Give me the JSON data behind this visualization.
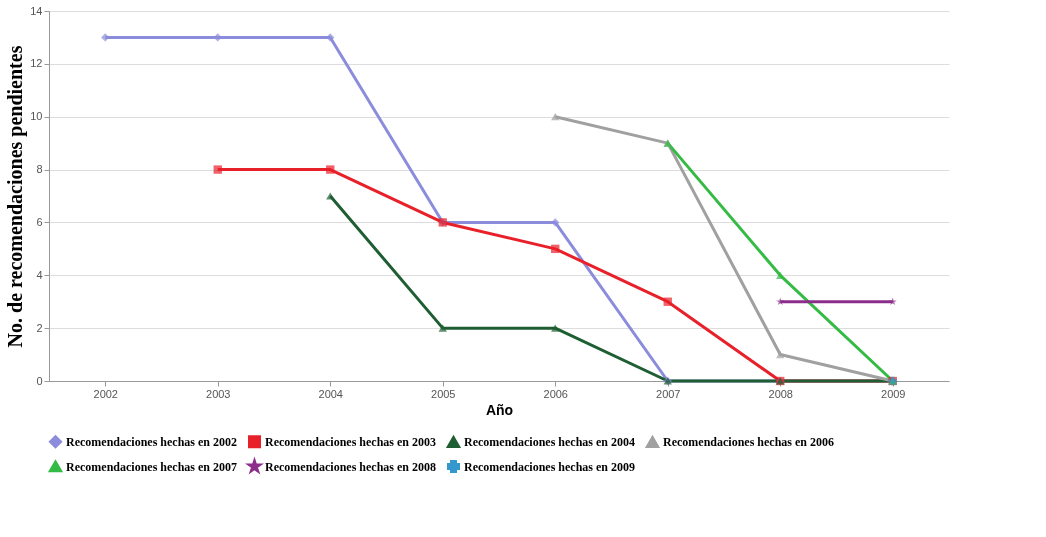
{
  "chart_data": {
    "type": "line",
    "xlabel": "Año",
    "ylabel": "No. de recomendaciones pendientes",
    "categories": [
      "2002",
      "2003",
      "2004",
      "2005",
      "2006",
      "2007",
      "2008",
      "2009"
    ],
    "ylim": [
      0,
      14
    ],
    "yticks": [
      0,
      2,
      4,
      6,
      8,
      10,
      12,
      14
    ],
    "grid": "y",
    "legend": "bottom",
    "line_style": "solid",
    "series": [
      {
        "name": "Recomendaciones hechas en 2002",
        "color": "#8c8cdc",
        "marker": "diamond",
        "values": [
          13,
          13,
          13,
          6,
          6,
          0,
          0,
          0
        ]
      },
      {
        "name": "Recomendaciones hechas en 2003",
        "color": "#e8202a",
        "marker": "square",
        "values": [
          null,
          8,
          8,
          6,
          5,
          3,
          0,
          0
        ]
      },
      {
        "name": "Recomendaciones hechas en 2004",
        "color": "#1e5e32",
        "marker": "triangle",
        "values": [
          null,
          null,
          7,
          2,
          2,
          0,
          0,
          0
        ]
      },
      {
        "name": "Recomendaciones hechas en 2006",
        "color": "#a0a0a0",
        "marker": "triangle",
        "values": [
          null,
          null,
          null,
          null,
          10,
          9,
          1,
          0
        ]
      },
      {
        "name": "Recomendaciones hechas en 2007",
        "color": "#33bb44",
        "marker": "triangle",
        "values": [
          null,
          null,
          null,
          null,
          null,
          9,
          4,
          0
        ]
      },
      {
        "name": "Recomendaciones hechas en 2008",
        "color": "#8b2e8b",
        "marker": "star",
        "values": [
          null,
          null,
          null,
          null,
          null,
          null,
          3,
          3
        ]
      },
      {
        "name": "Recomendaciones hechas en 2009",
        "color": "#3399cc",
        "marker": "cross",
        "values": [
          null,
          null,
          null,
          null,
          null,
          null,
          null,
          0
        ]
      }
    ]
  }
}
